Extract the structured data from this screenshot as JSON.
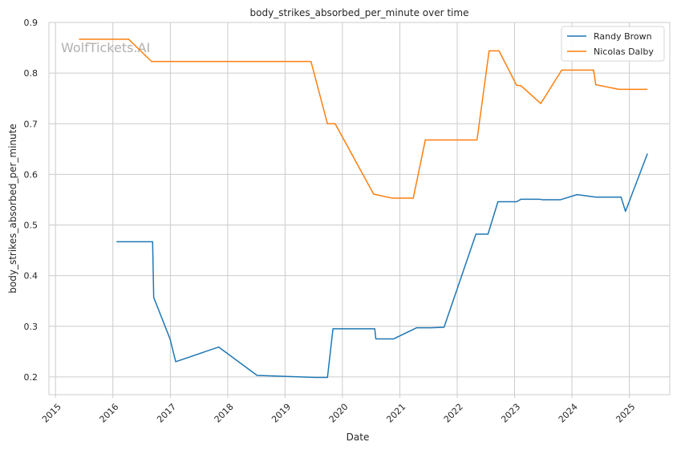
{
  "chart_data": {
    "type": "line",
    "title": "body_strikes_absorbed_per_minute over time",
    "xlabel": "Date",
    "ylabel": "body_strikes_absorbed_per_minute",
    "xlim": [
      "2014-11-20",
      "2025-09-15"
    ],
    "ylim": [
      0.165,
      0.9
    ],
    "x_ticks": [
      "2015",
      "2016",
      "2017",
      "2018",
      "2019",
      "2020",
      "2021",
      "2022",
      "2023",
      "2024",
      "2025"
    ],
    "y_ticks": [
      "0.2",
      "0.3",
      "0.4",
      "0.5",
      "0.6",
      "0.7",
      "0.8",
      "0.9"
    ],
    "grid": true,
    "legend_position": "top-right",
    "watermark": "WolfTickets.AI",
    "series": [
      {
        "name": "Randy Brown",
        "color": "#1f77b4",
        "points": [
          [
            "2016-01-24",
            0.467
          ],
          [
            "2016-09-10",
            0.467
          ],
          [
            "2016-09-17",
            0.357
          ],
          [
            "2016-12-30",
            0.275
          ],
          [
            "2017-02-04",
            0.23
          ],
          [
            "2017-11-04",
            0.259
          ],
          [
            "2018-07-07",
            0.203
          ],
          [
            "2019-07-13",
            0.199
          ],
          [
            "2019-09-28",
            0.199
          ],
          [
            "2019-11-02",
            0.295
          ],
          [
            "2020-07-25",
            0.295
          ],
          [
            "2020-08-01",
            0.275
          ],
          [
            "2020-11-21",
            0.275
          ],
          [
            "2021-04-17",
            0.297
          ],
          [
            "2021-07-17",
            0.297
          ],
          [
            "2021-10-09",
            0.298
          ],
          [
            "2022-04-30",
            0.482
          ],
          [
            "2022-07-16",
            0.482
          ],
          [
            "2022-09-17",
            0.546
          ],
          [
            "2023-01-14",
            0.546
          ],
          [
            "2023-02-11",
            0.551
          ],
          [
            "2023-06-10",
            0.551
          ],
          [
            "2023-06-24",
            0.55
          ],
          [
            "2023-10-21",
            0.55
          ],
          [
            "2024-02-03",
            0.56
          ],
          [
            "2024-06-01",
            0.555
          ],
          [
            "2024-11-09",
            0.555
          ],
          [
            "2024-12-07",
            0.527
          ],
          [
            "2025-04-26",
            0.641
          ]
        ]
      },
      {
        "name": "Nicolas Dalby",
        "color": "#ff7f0e",
        "points": [
          [
            "2015-05-30",
            0.867
          ],
          [
            "2016-04-10",
            0.867
          ],
          [
            "2016-09-03",
            0.823
          ],
          [
            "2019-06-15",
            0.823
          ],
          [
            "2019-09-28",
            0.7
          ],
          [
            "2019-11-16",
            0.7
          ],
          [
            "2020-07-18",
            0.561
          ],
          [
            "2020-11-14",
            0.553
          ],
          [
            "2021-03-27",
            0.553
          ],
          [
            "2021-06-12",
            0.668
          ],
          [
            "2022-05-07",
            0.668
          ],
          [
            "2022-07-23",
            0.844
          ],
          [
            "2022-09-24",
            0.844
          ],
          [
            "2023-01-14",
            0.776
          ],
          [
            "2023-02-11",
            0.775
          ],
          [
            "2023-06-17",
            0.74
          ],
          [
            "2023-10-28",
            0.806
          ],
          [
            "2024-05-18",
            0.806
          ],
          [
            "2024-06-01",
            0.777
          ],
          [
            "2024-10-26",
            0.768
          ],
          [
            "2025-04-26",
            0.768
          ]
        ]
      }
    ]
  }
}
